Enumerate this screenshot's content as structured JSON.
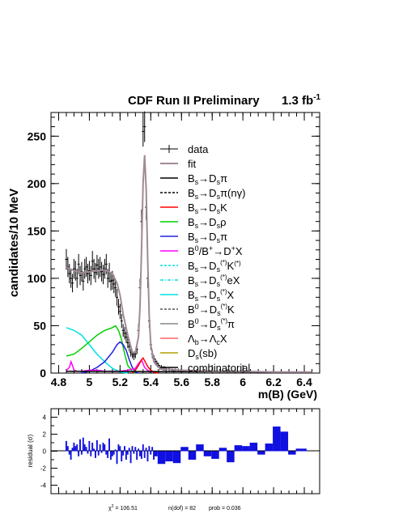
{
  "chart_data": [
    {
      "type": "histogram",
      "title": "CDF Run II Preliminary",
      "luminosity": "1.3 fb",
      "luminosity_exp": "-1",
      "xlabel": "m(B) (GeV)",
      "ylabel": "candidates/10 MeV",
      "xlim": [
        4.75,
        6.5
      ],
      "ylim": [
        0,
        275
      ],
      "x_ticks": [
        "4.8",
        "5",
        "5.2",
        "5.4",
        "5.6",
        "5.8",
        "6",
        "6.2",
        "6.4"
      ],
      "y_ticks": [
        "0",
        "50",
        "100",
        "150",
        "200",
        "250"
      ],
      "legend": {
        "placement": "top-right",
        "entries": [
          {
            "label": "data",
            "color": "#000000",
            "style": "marker"
          },
          {
            "label": "fit",
            "color": "#a08a98",
            "style": "solid"
          },
          {
            "label": "Bs→Dsπ",
            "color": "#000000",
            "style": "solid"
          },
          {
            "label": "Bs→Dsπ(nγ)",
            "color": "#000000",
            "style": "dashed"
          },
          {
            "label": "Bs→DsK",
            "color": "#ff0000",
            "style": "solid"
          },
          {
            "label": "Bs→Dsρ",
            "color": "#00d000",
            "style": "solid"
          },
          {
            "label": "Bs→Dsπ",
            "color": "#2020e0",
            "style": "solid"
          },
          {
            "label": "B0/B+→D+X",
            "color": "#ff00ff",
            "style": "solid"
          },
          {
            "label": "Bs→Ds(*)K(*)",
            "color": "#00e0e0",
            "style": "dashed"
          },
          {
            "label": "Bs→Ds(*)eX",
            "color": "#00e0e0",
            "style": "dashdot"
          },
          {
            "label": "Bs→Ds(*)X",
            "color": "#00e0e0",
            "style": "solid"
          },
          {
            "label": "B0→Ds(*)K",
            "color": "#555555",
            "style": "dashed"
          },
          {
            "label": "B0→Ds(*)π",
            "color": "#888888",
            "style": "solid"
          },
          {
            "label": "Λb→ΛcX",
            "color": "#ff6060",
            "style": "solid"
          },
          {
            "label": "Ds(sb)",
            "color": "#b0a000",
            "style": "solid"
          },
          {
            "label": "combinatorial",
            "color": "#000000",
            "style": "solid"
          }
        ]
      },
      "data": {
        "x": [
          4.85,
          4.86,
          4.87,
          4.88,
          4.89,
          4.9,
          4.91,
          4.92,
          4.93,
          4.94,
          4.95,
          4.96,
          4.97,
          4.98,
          4.99,
          5.0,
          5.01,
          5.02,
          5.03,
          5.04,
          5.05,
          5.06,
          5.07,
          5.08,
          5.09,
          5.1,
          5.11,
          5.12,
          5.13,
          5.14,
          5.15,
          5.16,
          5.17,
          5.18,
          5.19,
          5.2,
          5.21,
          5.22,
          5.23,
          5.24,
          5.25,
          5.26,
          5.27,
          5.28,
          5.29,
          5.3,
          5.31,
          5.32,
          5.33,
          5.34,
          5.35,
          5.36,
          5.37,
          5.38,
          5.39,
          5.4,
          5.41,
          5.42,
          5.43,
          5.44,
          5.45,
          5.46,
          5.47,
          5.48,
          5.49,
          5.5,
          5.52,
          5.54,
          5.56,
          5.58,
          5.6,
          5.65,
          5.7,
          5.8,
          5.9,
          6.0,
          6.1,
          6.2,
          6.3,
          6.4
        ],
        "y": [
          120,
          112,
          105,
          100,
          95,
          110,
          108,
          100,
          115,
          103,
          107,
          97,
          110,
          112,
          105,
          108,
          103,
          118,
          110,
          106,
          114,
          110,
          112,
          107,
          104,
          110,
          115,
          100,
          106,
          97,
          98,
          94,
          90,
          80,
          70,
          65,
          55,
          45,
          42,
          38,
          32,
          28,
          22,
          20,
          18,
          20,
          25,
          45,
          90,
          160,
          255,
          260,
          175,
          100,
          55,
          30,
          20,
          15,
          12,
          10,
          8,
          6,
          6,
          5,
          5,
          4,
          4,
          3,
          3,
          3,
          3,
          2,
          2,
          2,
          2,
          1,
          1,
          1,
          1,
          1
        ]
      },
      "fit": {
        "x": [
          4.85,
          4.9,
          4.95,
          5.0,
          5.05,
          5.1,
          5.15,
          5.18,
          5.2,
          5.22,
          5.25,
          5.28,
          5.3,
          5.32,
          5.33,
          5.34,
          5.35,
          5.36,
          5.37,
          5.38,
          5.39,
          5.4,
          5.42,
          5.45,
          5.5,
          5.6,
          5.8,
          6.0,
          6.2,
          6.45
        ],
        "y": [
          112,
          108,
          106,
          107,
          108,
          109,
          105,
          95,
          82,
          62,
          40,
          22,
          22,
          38,
          70,
          130,
          200,
          230,
          195,
          120,
          60,
          30,
          12,
          6,
          4,
          3,
          2,
          2,
          1,
          1
        ]
      },
      "components": {
        "Bs→Ds(*)X": {
          "x": [
            4.85,
            4.9,
            4.95,
            5.0,
            5.05,
            5.1,
            5.15,
            5.2,
            5.25
          ],
          "y": [
            48,
            45,
            40,
            30,
            20,
            12,
            5,
            1,
            0
          ]
        },
        "Bs→Dsρ": {
          "x": [
            4.85,
            4.9,
            4.95,
            5.0,
            5.05,
            5.1,
            5.15,
            5.17,
            5.19,
            5.21,
            5.23,
            5.25,
            5.28,
            5.3
          ],
          "y": [
            18,
            20,
            26,
            33,
            40,
            45,
            48,
            50,
            45,
            35,
            20,
            8,
            2,
            0
          ]
        },
        "Bs→Dsπ (partial)": {
          "x": [
            4.95,
            5.0,
            5.05,
            5.1,
            5.15,
            5.18,
            5.2,
            5.22,
            5.24,
            5.26,
            5.28,
            5.3,
            5.32
          ],
          "y": [
            0,
            2,
            6,
            12,
            22,
            30,
            33,
            30,
            24,
            14,
            6,
            1,
            0
          ]
        },
        "B0/B+→D+X": {
          "x": [
            4.85,
            4.87,
            4.88,
            4.89,
            4.9,
            4.92,
            4.95,
            5.0,
            5.05,
            5.1,
            5.15,
            5.2,
            5.25,
            5.3,
            5.32,
            5.34,
            5.35,
            5.36,
            5.38,
            5.4
          ],
          "y": [
            3,
            6,
            12,
            8,
            3,
            2,
            2,
            3,
            3,
            2,
            2,
            2,
            3,
            5,
            10,
            14,
            10,
            6,
            3,
            1
          ]
        },
        "Bs→DsK": {
          "x": [
            5.28,
            5.3,
            5.32,
            5.34,
            5.35,
            5.36,
            5.38,
            5.4,
            5.42,
            5.45
          ],
          "y": [
            0,
            3,
            8,
            14,
            16,
            13,
            7,
            3,
            1,
            0
          ]
        },
        "combinatorial": {
          "x": [
            4.85,
            6.45
          ],
          "y": [
            2,
            1
          ]
        }
      }
    },
    {
      "type": "bar",
      "ylabel": "residual (σ)",
      "ylim": [
        -5,
        5
      ],
      "y_ticks": [
        "4",
        "2",
        "0",
        "-2",
        "-4"
      ],
      "x": [
        4.85,
        4.86,
        4.87,
        4.88,
        4.89,
        4.9,
        4.91,
        4.92,
        4.93,
        4.94,
        4.95,
        4.96,
        4.97,
        4.98,
        4.99,
        5.0,
        5.01,
        5.02,
        5.03,
        5.04,
        5.05,
        5.06,
        5.07,
        5.08,
        5.09,
        5.1,
        5.11,
        5.12,
        5.13,
        5.14,
        5.15,
        5.16,
        5.17,
        5.18,
        5.19,
        5.2,
        5.21,
        5.22,
        5.23,
        5.24,
        5.25,
        5.26,
        5.27,
        5.28,
        5.29,
        5.3,
        5.31,
        5.32,
        5.33,
        5.34,
        5.35,
        5.36,
        5.37,
        5.38,
        5.39,
        5.4,
        5.41,
        5.42,
        5.43,
        5.45,
        5.5,
        5.55,
        5.6,
        5.65,
        5.7,
        5.75,
        5.8,
        5.85,
        5.9,
        5.95,
        6.0,
        6.05,
        6.1,
        6.15,
        6.2,
        6.25,
        6.3,
        6.35,
        6.4
      ],
      "values": [
        1.2,
        0.6,
        -0.4,
        -1.0,
        0.4,
        1.0,
        0.6,
        0.8,
        -0.6,
        1.4,
        -0.4,
        1.6,
        0.8,
        0.5,
        -0.3,
        1.2,
        -0.6,
        1.0,
        0.3,
        -0.8,
        1.3,
        -0.5,
        0.8,
        -0.2,
        1.0,
        0.8,
        -0.4,
        -0.8,
        1.5,
        -1.0,
        -0.6,
        -0.4,
        0.2,
        -1.5,
        0.8,
        0.6,
        -1.2,
        -0.5,
        0.6,
        -1.0,
        -0.4,
        0.4,
        -1.4,
        0.6,
        -0.3,
        0.5,
        -1.0,
        0.3,
        -0.6,
        -0.9,
        0.8,
        -0.8,
        0.4,
        -1.2,
        0.6,
        -0.4,
        0.5,
        -1.0,
        -0.6,
        -1.5,
        -1.2,
        -1.4,
        0.5,
        -1.0,
        0.8,
        -0.6,
        -0.9,
        0.4,
        -1.3,
        0.7,
        0.6,
        1.0,
        -0.4,
        0.9,
        2.9,
        2.3,
        -0.4,
        0.3,
        0.3
      ],
      "color": "#1010e0"
    }
  ],
  "stats": {
    "chi2_label": "χ",
    "chi2_exp": "2",
    "chi2_value": " = 106.51",
    "ndof": "n(dof) = 82",
    "prob": "prob = 0.036"
  }
}
